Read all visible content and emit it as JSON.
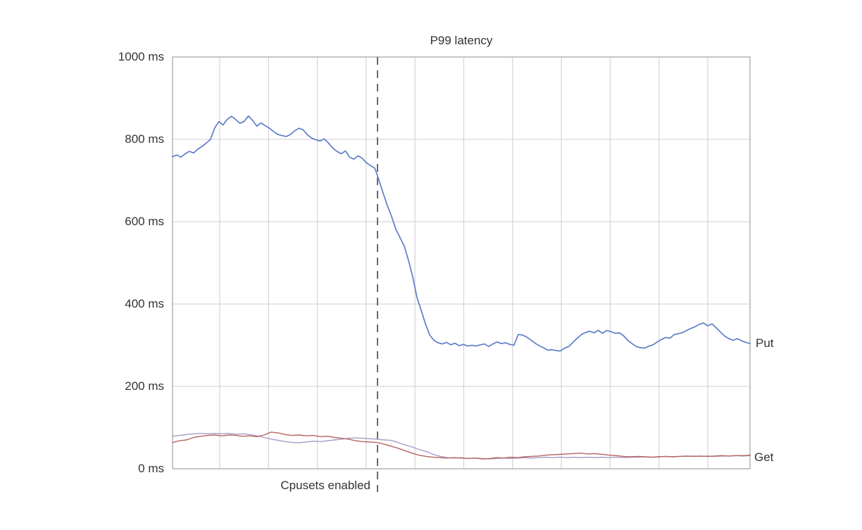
{
  "chart_data": {
    "type": "line",
    "title": "P99 latency",
    "grid": true,
    "legend_position": "right-edge-labels",
    "y_axis": {
      "range": [
        0,
        1000
      ],
      "unit": "ms",
      "ticks": [
        {
          "value": 1000,
          "label": "1000 ms"
        },
        {
          "value": 800,
          "label": "800 ms"
        },
        {
          "value": 600,
          "label": "600 ms"
        },
        {
          "value": 400,
          "label": "400 ms"
        },
        {
          "value": 200,
          "label": "200 ms"
        },
        {
          "value": 0,
          "label": "0 ms"
        }
      ]
    },
    "x_axis": {
      "tick_labels": []
    },
    "annotation": {
      "label": "Cpusets enabled",
      "x_frac": 0.355,
      "style": "dashed-vertical"
    },
    "right_labels": [
      {
        "text": "Put",
        "ms": 304
      },
      {
        "text": "Get",
        "ms": 27
      }
    ],
    "colors": {
      "put": "#5f7ec7",
      "get_red": "#b5655f",
      "get_purple": "#a79bc8",
      "grid": "#d7d7d7",
      "frame": "#b3b3b3",
      "annotation_line": "#595959",
      "text": "#333333"
    },
    "series": [
      {
        "id": "put",
        "label": "Put",
        "color": "#5f7ec7",
        "width": 1.7,
        "values": [
          758,
          762,
          757,
          765,
          771,
          767,
          776,
          783,
          791,
          800,
          828,
          843,
          835,
          849,
          856,
          848,
          839,
          844,
          857,
          846,
          832,
          840,
          833,
          827,
          819,
          812,
          809,
          807,
          812,
          821,
          827,
          823,
          811,
          803,
          799,
          796,
          801,
          791,
          779,
          771,
          765,
          772,
          757,
          752,
          760,
          754,
          743,
          736,
          730,
          700,
          668,
          638,
          612,
          581,
          561,
          540,
          505,
          465,
          415,
          385,
          352,
          325,
          312,
          306,
          303,
          307,
          301,
          305,
          299,
          302,
          298,
          300,
          298,
          301,
          303,
          297,
          303,
          308,
          304,
          306,
          302,
          300,
          326,
          325,
          320,
          313,
          305,
          299,
          294,
          288,
          289,
          287,
          286,
          293,
          297,
          307,
          317,
          326,
          331,
          334,
          330,
          336,
          329,
          336,
          333,
          329,
          330,
          323,
          312,
          304,
          297,
          294,
          293,
          298,
          301,
          308,
          314,
          319,
          317,
          326,
          328,
          331,
          336,
          341,
          345,
          351,
          354,
          347,
          352,
          342,
          332,
          322,
          316,
          312,
          316,
          311,
          307,
          304
        ]
      },
      {
        "id": "get_purple",
        "label": "Get",
        "color": "#a79bc8",
        "width": 1.4,
        "values": [
          79,
          81,
          83,
          85,
          86,
          85,
          86,
          85,
          86,
          84,
          85,
          83,
          80,
          76,
          72,
          69,
          66,
          64,
          63,
          65,
          67,
          66,
          68,
          70,
          72,
          74,
          75,
          74,
          73,
          72,
          70,
          69,
          64,
          58,
          53,
          47,
          42,
          35,
          30,
          27,
          26,
          27,
          25,
          26,
          25,
          24,
          25,
          26,
          25,
          26,
          27,
          26,
          27,
          28,
          27,
          28,
          27,
          28,
          27,
          28,
          27,
          28,
          27,
          28,
          27,
          28,
          28,
          29,
          28,
          29,
          30,
          29,
          30,
          30,
          31,
          30,
          31,
          30,
          31,
          31,
          32,
          31,
          32
        ]
      },
      {
        "id": "get_red",
        "label": "Get",
        "color": "#b5655f",
        "width": 1.4,
        "values": [
          64,
          68,
          70,
          76,
          79,
          81,
          82,
          80,
          82,
          81,
          79,
          80,
          78,
          82,
          89,
          87,
          83,
          81,
          82,
          80,
          81,
          78,
          79,
          76,
          74,
          72,
          68,
          66,
          65,
          64,
          60,
          55,
          50,
          44,
          38,
          33,
          30,
          28,
          27,
          26,
          27,
          26,
          25,
          26,
          24,
          25,
          27,
          26,
          28,
          27,
          29,
          30,
          31,
          33,
          34,
          35,
          36,
          37,
          38,
          36,
          37,
          35,
          33,
          32,
          30,
          29,
          30,
          29,
          28,
          29,
          30,
          29,
          30,
          31,
          30,
          31,
          30,
          31,
          32,
          31,
          32,
          32,
          33
        ]
      }
    ]
  }
}
